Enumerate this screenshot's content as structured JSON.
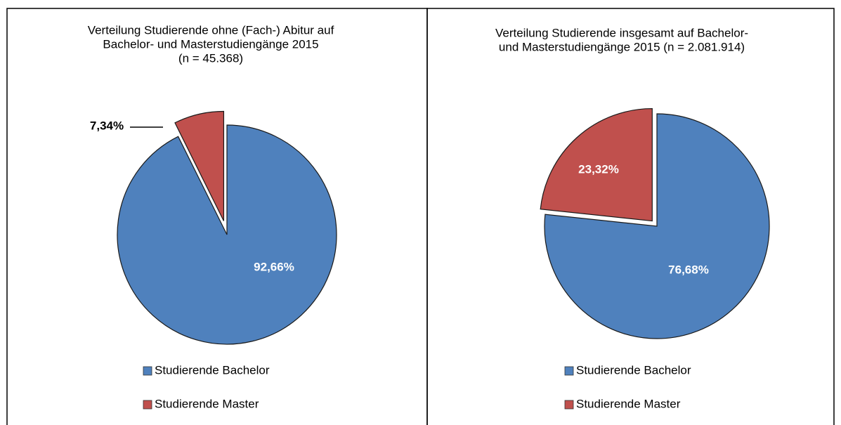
{
  "chart_data": [
    {
      "type": "pie",
      "title": [
        "Verteilung Studierende ohne (Fach-) Abitur auf",
        "Bachelor- und Masterstudiengänge 2015",
        "(n = 45.368)"
      ],
      "categories": [
        "Studierende Bachelor",
        "Studierende Master"
      ],
      "values": [
        92.66,
        7.34
      ],
      "value_labels": [
        "92,66%",
        "7,34%"
      ],
      "colors": [
        "#4f81bd",
        "#c0504d"
      ],
      "legend": "bottom"
    },
    {
      "type": "pie",
      "title": [
        "Verteilung Studierende insgesamt auf Bachelor-",
        "und Masterstudiengänge 2015 (n = 2.081.914)"
      ],
      "categories": [
        "Studierende Bachelor",
        "Studierende Master"
      ],
      "values": [
        76.68,
        23.32
      ],
      "value_labels": [
        "76,68%",
        "23,32%"
      ],
      "colors": [
        "#4f81bd",
        "#c0504d"
      ],
      "legend": "bottom"
    }
  ]
}
